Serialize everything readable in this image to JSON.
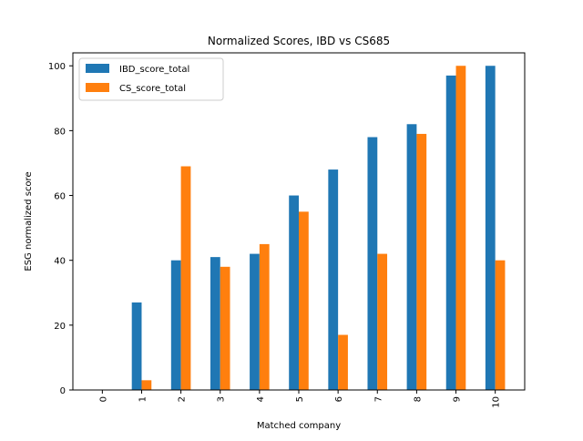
{
  "chart_data": {
    "type": "bar",
    "title": "Normalized Scores, IBD vs CS685",
    "xlabel": "Matched company",
    "ylabel": "ESG normalized score",
    "categories": [
      "0",
      "1",
      "2",
      "3",
      "4",
      "5",
      "6",
      "7",
      "8",
      "9",
      "10"
    ],
    "series": [
      {
        "name": "IBD_score_total",
        "color": "#1f77b4",
        "values": [
          0,
          27,
          40,
          41,
          42,
          60,
          68,
          78,
          82,
          97,
          100
        ]
      },
      {
        "name": "CS_score_total",
        "color": "#ff7f0e",
        "values": [
          0,
          3,
          69,
          38,
          45,
          55,
          17,
          42,
          79,
          100,
          40
        ]
      }
    ],
    "ylim": [
      0,
      104
    ],
    "yticks": [
      0,
      20,
      40,
      60,
      80,
      100
    ],
    "legend_position": "top-left",
    "grid": false,
    "xtick_rotation": "vertical"
  }
}
